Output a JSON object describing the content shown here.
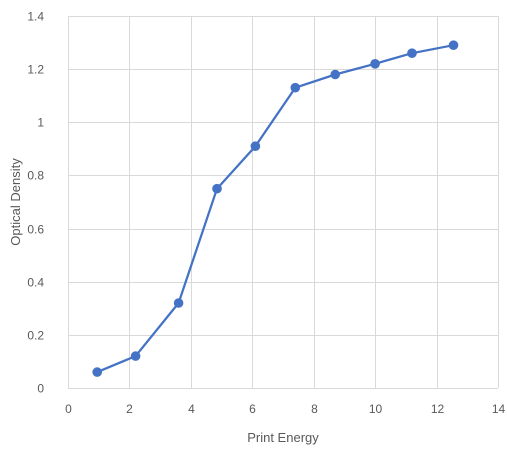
{
  "chart_data": {
    "type": "line",
    "title": "",
    "xlabel": "Print Energy",
    "ylabel": "Optical Density",
    "xlim": [
      0,
      14
    ],
    "ylim": [
      0,
      1.4
    ],
    "xticks": [
      0,
      2,
      4,
      6,
      8,
      10,
      12,
      14
    ],
    "yticks": [
      0,
      0.2,
      0.4,
      0.6,
      0.8,
      1,
      1.2,
      1.4
    ],
    "xtick_labels": [
      "0",
      "2",
      "4",
      "6",
      "8",
      "10",
      "12",
      "14"
    ],
    "ytick_labels": [
      "0",
      "0.2",
      "0.4",
      "0.6",
      "0.8",
      "1",
      "1.2",
      "1.4"
    ],
    "grid": true,
    "legend": "none",
    "series": [
      {
        "color": "#4472c4",
        "marker": "circle",
        "points": [
          {
            "x": 0.95,
            "y": 0.06
          },
          {
            "x": 2.2,
            "y": 0.12
          },
          {
            "x": 3.6,
            "y": 0.32
          },
          {
            "x": 4.85,
            "y": 0.75
          },
          {
            "x": 6.1,
            "y": 0.91
          },
          {
            "x": 7.4,
            "y": 1.13
          },
          {
            "x": 8.7,
            "y": 1.18
          },
          {
            "x": 10.0,
            "y": 1.22
          },
          {
            "x": 11.2,
            "y": 1.26
          },
          {
            "x": 12.55,
            "y": 1.29
          }
        ]
      }
    ]
  }
}
